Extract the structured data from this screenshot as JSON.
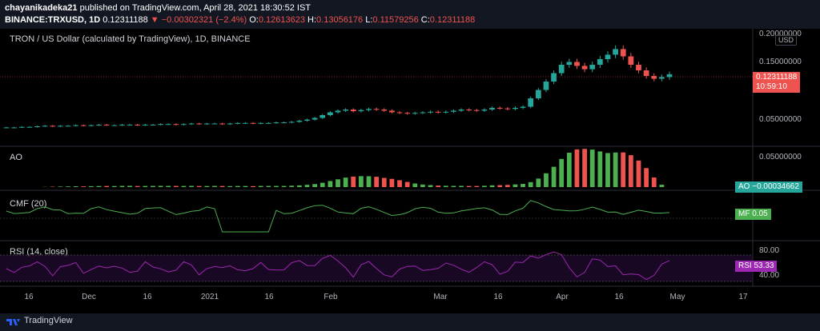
{
  "header": {
    "user": "chayanikadeka21",
    "published_text": "published on TradingView.com, April 28, 2021 18:30:52 IST",
    "symbol": "BINANCE:TRXUSD, 1D",
    "last": "0.12311188",
    "change": "▼ −0.00302321 (−2.4%)",
    "o_label": "O:",
    "o_value": "0.12613623",
    "h_label": "H:",
    "h_value": "0.13056176",
    "l_label": "L:",
    "l_value": "0.11579256",
    "c_label": "C:",
    "c_value": "0.12311188"
  },
  "main_pane": {
    "title": "TRON / US Dollar (calculated by TradingView), 1D, BINANCE",
    "currency_button": "USD",
    "y_ticks": [
      "0.20000000",
      "0.15000000",
      "0.05000000"
    ],
    "price_tag": "0.12311188",
    "countdown": "10:59:10"
  },
  "ao_pane": {
    "title": "AO",
    "y_tick": "0.05000000",
    "tag_name": "AO",
    "tag_value": "−0.00034662"
  },
  "cmf_pane": {
    "title": "CMF (20)",
    "tag_name": "MF",
    "tag_value": "0.05"
  },
  "rsi_pane": {
    "title": "RSI (14, close)",
    "y_ticks": [
      "80.00",
      "40.00"
    ],
    "tag_name": "RSI",
    "tag_value": "53.33"
  },
  "x_axis": [
    "16",
    "Dec",
    "16",
    "2021",
    "16",
    "Feb",
    "Mar",
    "16",
    "Apr",
    "16",
    "May",
    "17"
  ],
  "footer": {
    "brand": "TradingView"
  },
  "colors": {
    "up": "#26a69a",
    "down": "#ef5350",
    "green": "#4caf50",
    "rsi": "#9c27b0"
  },
  "chart_data": {
    "type": "candlestick",
    "title": "TRON / US Dollar (calculated by TradingView), 1D, BINANCE",
    "ylim": [
      0.0,
      0.2
    ],
    "price_series_close": [
      0.028,
      0.028,
      0.029,
      0.029,
      0.03,
      0.031,
      0.03,
      0.031,
      0.031,
      0.032,
      0.031,
      0.032,
      0.033,
      0.032,
      0.032,
      0.033,
      0.033,
      0.032,
      0.033,
      0.033,
      0.034,
      0.034,
      0.033,
      0.034,
      0.035,
      0.034,
      0.035,
      0.035,
      0.034,
      0.035,
      0.036,
      0.036,
      0.035,
      0.036,
      0.036,
      0.037,
      0.037,
      0.038,
      0.04,
      0.042,
      0.045,
      0.05,
      0.055,
      0.058,
      0.06,
      0.057,
      0.059,
      0.061,
      0.06,
      0.058,
      0.055,
      0.054,
      0.053,
      0.054,
      0.055,
      0.056,
      0.055,
      0.056,
      0.058,
      0.06,
      0.059,
      0.058,
      0.06,
      0.063,
      0.062,
      0.061,
      0.063,
      0.065,
      0.08,
      0.095,
      0.11,
      0.125,
      0.14,
      0.145,
      0.138,
      0.132,
      0.14,
      0.15,
      0.158,
      0.168,
      0.155,
      0.14,
      0.13,
      0.12,
      0.115,
      0.118,
      0.123
    ],
    "current_price": 0.12311188,
    "ao_last": -0.00034662,
    "cmf_last": 0.05,
    "rsi_last": 53.33,
    "rsi_levels": [
      70,
      30
    ]
  }
}
